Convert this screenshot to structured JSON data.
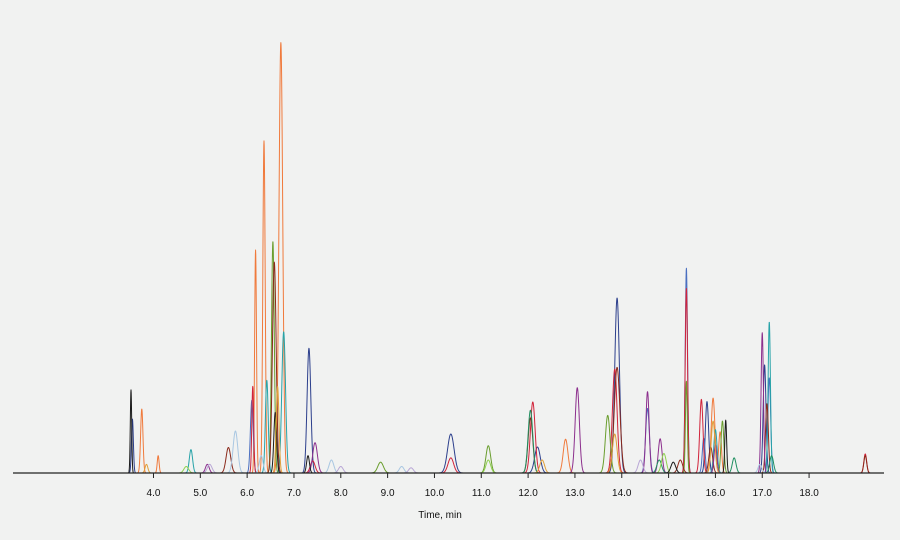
{
  "chart_data": {
    "type": "line",
    "title": "",
    "xlabel": "Time, min",
    "ylabel": "",
    "xlim": [
      1.0,
      19.6
    ],
    "ylim": [
      0,
      100
    ],
    "grid": false,
    "legend": "none",
    "x_ticks": [
      {
        "value": 4.0,
        "label": "4.0"
      },
      {
        "value": 5.0,
        "label": "5.0"
      },
      {
        "value": 6.0,
        "label": "6.0"
      },
      {
        "value": 7.0,
        "label": "7.0"
      },
      {
        "value": 8.0,
        "label": "8.0"
      },
      {
        "value": 9.0,
        "label": "9.0"
      },
      {
        "value": 10.0,
        "label": "10.0"
      },
      {
        "value": 11.0,
        "label": "11.0"
      },
      {
        "value": 12.0,
        "label": "12.0"
      },
      {
        "value": 13.0,
        "label": "13.0"
      },
      {
        "value": 14.0,
        "label": "14.0"
      },
      {
        "value": 15.0,
        "label": "15.0"
      },
      {
        "value": 16.0,
        "label": "16.0"
      },
      {
        "value": 17.0,
        "label": "17.0"
      },
      {
        "value": 18.0,
        "label": "18.0"
      }
    ],
    "series": [
      {
        "color": "#f07a3c",
        "peaks": [
          [
            3.75,
            14.8,
            0.025
          ],
          [
            4.1,
            4.0,
            0.02
          ],
          [
            6.18,
            51.5,
            0.02
          ],
          [
            6.36,
            76.7,
            0.025
          ],
          [
            6.72,
            99.4,
            0.04
          ],
          [
            12.8,
            7.8,
            0.05
          ],
          [
            15.95,
            17.3,
            0.04
          ],
          [
            16.1,
            9.5,
            0.03
          ]
        ]
      },
      {
        "color": "#2c3f8c",
        "peaks": [
          [
            3.55,
            12.5,
            0.02
          ],
          [
            7.32,
            28.8,
            0.04
          ],
          [
            10.35,
            9.0,
            0.07
          ],
          [
            12.2,
            6.0,
            0.06
          ],
          [
            13.9,
            40.4,
            0.05
          ],
          [
            15.82,
            16.5,
            0.035
          ],
          [
            17.05,
            25.0,
            0.03
          ]
        ]
      },
      {
        "color": "#4a6fc0",
        "peaks": [
          [
            6.1,
            16.8,
            0.03
          ],
          [
            14.55,
            14.9,
            0.04
          ],
          [
            15.38,
            47.3,
            0.025
          ],
          [
            15.75,
            8.0,
            0.03
          ],
          [
            17.15,
            22.0,
            0.03
          ]
        ]
      },
      {
        "color": "#d1233a",
        "peaks": [
          [
            6.12,
            20.0,
            0.02
          ],
          [
            7.4,
            2.8,
            0.05
          ],
          [
            10.35,
            3.5,
            0.06
          ],
          [
            12.1,
            16.4,
            0.05
          ],
          [
            13.85,
            24.0,
            0.05
          ],
          [
            15.38,
            42.6,
            0.025
          ],
          [
            15.7,
            17.0,
            0.035
          ],
          [
            19.2,
            4.4,
            0.03
          ]
        ]
      },
      {
        "color": "#27a3a8",
        "peaks": [
          [
            4.8,
            5.4,
            0.035
          ],
          [
            6.42,
            21.4,
            0.03
          ],
          [
            6.78,
            32.6,
            0.04
          ],
          [
            16.0,
            10.0,
            0.035
          ],
          [
            17.15,
            34.9,
            0.025
          ]
        ]
      },
      {
        "color": "#6a9e2e",
        "peaks": [
          [
            6.55,
            53.5,
            0.03
          ],
          [
            8.85,
            2.5,
            0.06
          ],
          [
            11.15,
            6.3,
            0.05
          ],
          [
            13.7,
            13.3,
            0.05
          ],
          [
            15.38,
            21.2,
            0.02
          ],
          [
            16.15,
            12.0,
            0.03
          ]
        ]
      },
      {
        "color": "#8b2a1b",
        "peaks": [
          [
            5.6,
            5.9,
            0.05
          ],
          [
            6.58,
            48.7,
            0.04
          ],
          [
            12.05,
            12.7,
            0.05
          ],
          [
            13.9,
            24.4,
            0.06
          ],
          [
            15.25,
            3.0,
            0.05
          ],
          [
            15.9,
            6.0,
            0.04
          ],
          [
            17.1,
            16.0,
            0.03
          ],
          [
            19.2,
            4.0,
            0.03
          ]
        ]
      },
      {
        "color": "#8c2f8d",
        "peaks": [
          [
            5.15,
            2.0,
            0.04
          ],
          [
            7.45,
            7.0,
            0.05
          ],
          [
            13.05,
            19.7,
            0.045
          ],
          [
            14.55,
            18.8,
            0.035
          ],
          [
            14.82,
            7.9,
            0.04
          ],
          [
            16.0,
            6.5,
            0.03
          ],
          [
            17.0,
            32.4,
            0.025
          ]
        ]
      },
      {
        "color": "#1f8f60",
        "peaks": [
          [
            12.05,
            14.5,
            0.05
          ],
          [
            14.8,
            3.0,
            0.05
          ],
          [
            16.4,
            3.5,
            0.04
          ],
          [
            17.2,
            4.0,
            0.04
          ]
        ]
      },
      {
        "color": "#8fd14f",
        "peaks": [
          [
            4.7,
            1.5,
            0.05
          ],
          [
            11.15,
            3.0,
            0.05
          ],
          [
            14.9,
            4.5,
            0.05
          ]
        ]
      },
      {
        "color": "#a9c7e2",
        "peaks": [
          [
            5.75,
            9.7,
            0.05
          ],
          [
            6.3,
            4.0,
            0.04
          ],
          [
            7.8,
            3.0,
            0.05
          ],
          [
            9.3,
            1.5,
            0.05
          ],
          [
            16.95,
            2.0,
            0.04
          ]
        ]
      },
      {
        "color": "#1b1b1b",
        "peaks": [
          [
            3.52,
            19.2,
            0.015
          ],
          [
            6.6,
            14.0,
            0.03
          ],
          [
            7.3,
            4.0,
            0.03
          ],
          [
            15.1,
            2.5,
            0.05
          ],
          [
            16.22,
            12.2,
            0.02
          ]
        ]
      },
      {
        "color": "#e0a03a",
        "peaks": [
          [
            3.85,
            2.0,
            0.03
          ],
          [
            6.65,
            20.0,
            0.03
          ],
          [
            12.3,
            3.0,
            0.05
          ],
          [
            13.85,
            9.0,
            0.05
          ],
          [
            15.95,
            12.0,
            0.04
          ]
        ]
      },
      {
        "color": "#b9a7d6",
        "peaks": [
          [
            5.2,
            2.0,
            0.05
          ],
          [
            8.0,
            1.5,
            0.05
          ],
          [
            9.5,
            1.2,
            0.05
          ],
          [
            14.4,
            3.0,
            0.05
          ]
        ]
      }
    ]
  }
}
